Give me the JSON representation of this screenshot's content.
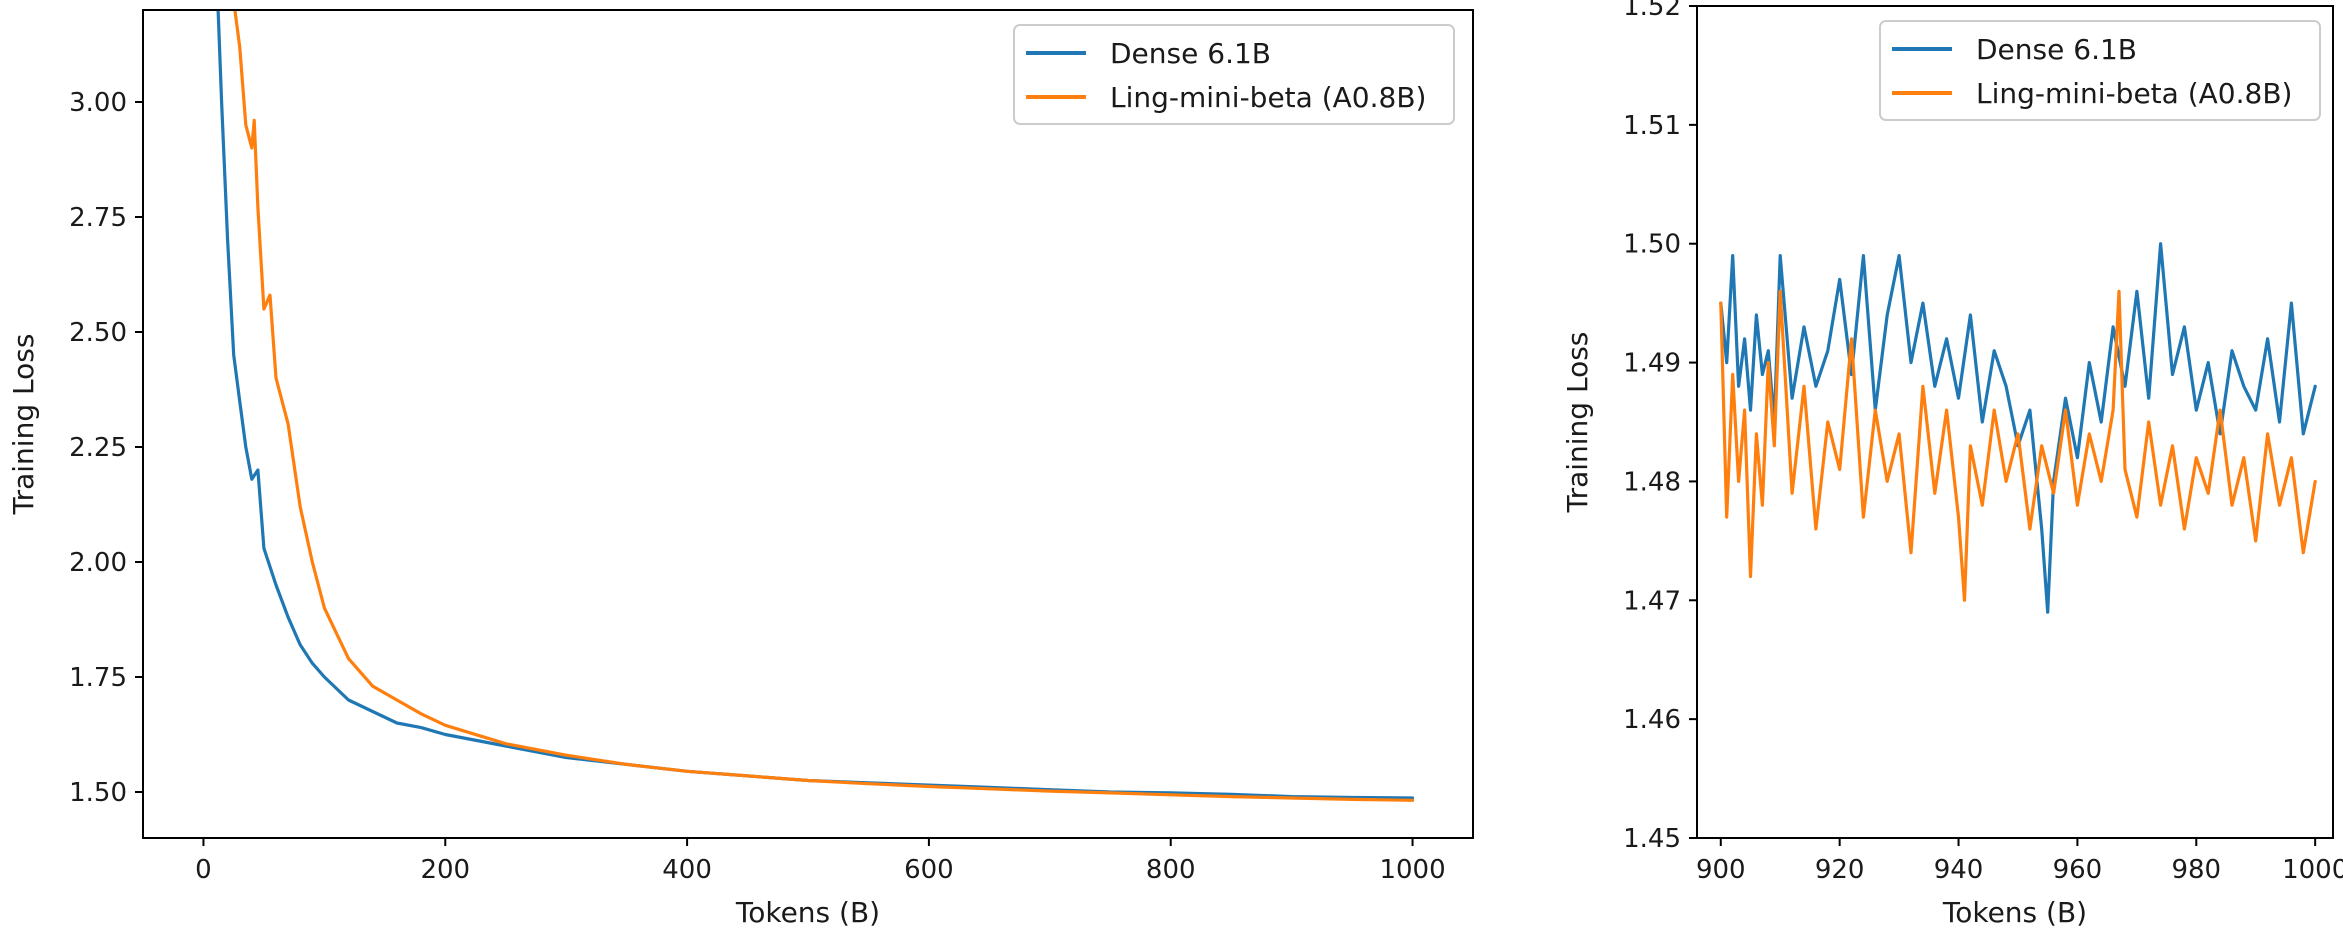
{
  "chart_data": [
    {
      "type": "line",
      "xlabel": "Tokens (B)",
      "ylabel": "Training Loss",
      "xlim": [
        -50,
        1050
      ],
      "ylim": [
        1.4,
        3.2
      ],
      "xticks": [
        0,
        200,
        400,
        600,
        800,
        1000
      ],
      "yticks": [
        1.5,
        1.75,
        2.0,
        2.25,
        2.5,
        2.75,
        3.0
      ],
      "ytick_labels": [
        "1.50",
        "1.75",
        "2.00",
        "2.25",
        "2.50",
        "2.75",
        "3.00"
      ],
      "grid": false,
      "legend": "top-right",
      "series": [
        {
          "name": "Dense 6.1B",
          "color": "#1f77b4",
          "x": [
            10,
            15,
            20,
            25,
            30,
            35,
            40,
            45,
            50,
            60,
            70,
            80,
            90,
            100,
            120,
            140,
            160,
            180,
            200,
            250,
            300,
            350,
            400,
            450,
            500,
            550,
            600,
            650,
            700,
            750,
            800,
            850,
            900,
            950,
            1000
          ],
          "y": [
            3.35,
            3.0,
            2.7,
            2.45,
            2.35,
            2.25,
            2.18,
            2.2,
            2.03,
            1.95,
            1.88,
            1.82,
            1.78,
            1.75,
            1.7,
            1.675,
            1.65,
            1.64,
            1.625,
            1.6,
            1.575,
            1.56,
            1.545,
            1.535,
            1.525,
            1.52,
            1.515,
            1.51,
            1.505,
            1.5,
            1.498,
            1.495,
            1.49,
            1.488,
            1.487
          ]
        },
        {
          "name": "Ling-mini-beta (A0.8B)",
          "color": "#ff7f0e",
          "x": [
            25,
            30,
            35,
            40,
            42,
            45,
            50,
            55,
            60,
            70,
            80,
            90,
            100,
            120,
            140,
            160,
            180,
            200,
            250,
            300,
            350,
            400,
            450,
            500,
            550,
            600,
            650,
            700,
            750,
            800,
            850,
            900,
            950,
            1000
          ],
          "y": [
            3.22,
            3.12,
            2.95,
            2.9,
            2.96,
            2.77,
            2.55,
            2.58,
            2.4,
            2.3,
            2.12,
            2.0,
            1.9,
            1.79,
            1.73,
            1.7,
            1.67,
            1.645,
            1.605,
            1.58,
            1.56,
            1.545,
            1.535,
            1.525,
            1.518,
            1.512,
            1.507,
            1.502,
            1.498,
            1.494,
            1.49,
            1.487,
            1.484,
            1.482
          ]
        }
      ]
    },
    {
      "type": "line",
      "xlabel": "Tokens (B)",
      "ylabel": "Training Loss",
      "xlim": [
        896,
        1003
      ],
      "ylim": [
        1.45,
        1.52
      ],
      "xticks": [
        900,
        920,
        940,
        960,
        980,
        1000
      ],
      "yticks": [
        1.45,
        1.46,
        1.47,
        1.48,
        1.49,
        1.5,
        1.51,
        1.52
      ],
      "ytick_labels": [
        "1.45",
        "1.46",
        "1.47",
        "1.48",
        "1.49",
        "1.50",
        "1.51",
        "1.52"
      ],
      "grid": false,
      "legend": "top-right",
      "series": [
        {
          "name": "Dense 6.1B",
          "color": "#1f77b4",
          "x": [
            900,
            901,
            902,
            903,
            904,
            905,
            906,
            907,
            908,
            909,
            910,
            912,
            914,
            916,
            918,
            920,
            922,
            924,
            926,
            928,
            930,
            932,
            934,
            936,
            938,
            940,
            942,
            944,
            946,
            948,
            950,
            952,
            954,
            955,
            956,
            958,
            960,
            962,
            964,
            966,
            968,
            970,
            972,
            974,
            976,
            978,
            980,
            982,
            984,
            986,
            988,
            990,
            992,
            994,
            996,
            998,
            1000
          ],
          "y": [
            1.495,
            1.49,
            1.499,
            1.488,
            1.492,
            1.486,
            1.494,
            1.489,
            1.491,
            1.485,
            1.499,
            1.487,
            1.493,
            1.488,
            1.491,
            1.497,
            1.489,
            1.499,
            1.486,
            1.494,
            1.499,
            1.49,
            1.495,
            1.488,
            1.492,
            1.487,
            1.494,
            1.485,
            1.491,
            1.488,
            1.483,
            1.486,
            1.476,
            1.469,
            1.48,
            1.487,
            1.482,
            1.49,
            1.485,
            1.493,
            1.488,
            1.496,
            1.487,
            1.5,
            1.489,
            1.493,
            1.486,
            1.49,
            1.484,
            1.491,
            1.488,
            1.486,
            1.492,
            1.485,
            1.495,
            1.484,
            1.488
          ]
        },
        {
          "name": "Ling-mini-beta (A0.8B)",
          "color": "#ff7f0e",
          "x": [
            900,
            901,
            902,
            903,
            904,
            905,
            906,
            907,
            908,
            909,
            910,
            912,
            914,
            916,
            918,
            920,
            922,
            924,
            926,
            928,
            930,
            932,
            934,
            936,
            938,
            940,
            941,
            942,
            944,
            946,
            948,
            950,
            952,
            954,
            956,
            958,
            960,
            962,
            964,
            966,
            967,
            968,
            970,
            972,
            974,
            976,
            978,
            980,
            982,
            984,
            986,
            988,
            990,
            992,
            994,
            996,
            998,
            1000
          ],
          "y": [
            1.495,
            1.477,
            1.489,
            1.48,
            1.486,
            1.472,
            1.484,
            1.478,
            1.49,
            1.483,
            1.496,
            1.479,
            1.488,
            1.476,
            1.485,
            1.481,
            1.492,
            1.477,
            1.486,
            1.48,
            1.484,
            1.474,
            1.488,
            1.479,
            1.486,
            1.477,
            1.47,
            1.483,
            1.478,
            1.486,
            1.48,
            1.484,
            1.476,
            1.483,
            1.479,
            1.486,
            1.478,
            1.484,
            1.48,
            1.486,
            1.496,
            1.481,
            1.477,
            1.485,
            1.478,
            1.483,
            1.476,
            1.482,
            1.479,
            1.486,
            1.478,
            1.482,
            1.475,
            1.484,
            1.478,
            1.482,
            1.474,
            1.48
          ]
        }
      ]
    }
  ]
}
